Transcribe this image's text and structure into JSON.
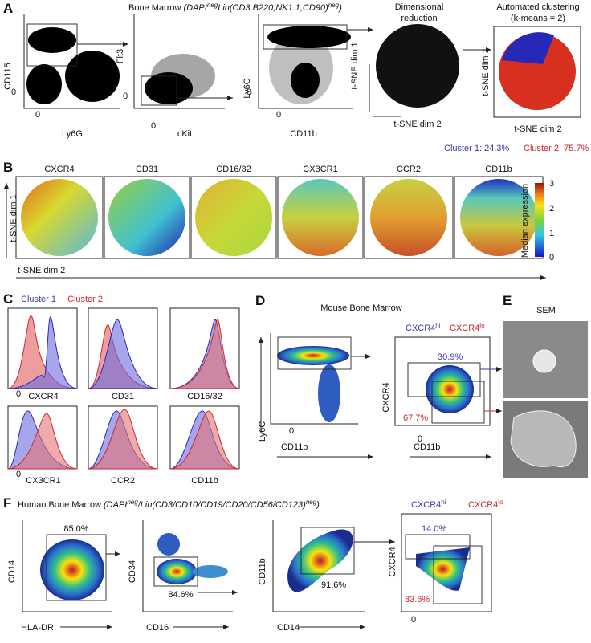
{
  "panel_a": {
    "label": "A",
    "title": "Bone Marrow",
    "gate_prefix": "DAPI",
    "gate_sup1": "neg",
    "gate_mid": "Lin(CD3,B220,NK1.1,CD90)",
    "gate_sup2": "neg",
    "plots": [
      {
        "y_label": "CD115",
        "x_label": "Ly6G",
        "y_zero": "0",
        "x_zero": "0"
      },
      {
        "y_label": "Flt3",
        "x_label": "cKit",
        "y_zero": "0",
        "x_zero": "0"
      },
      {
        "y_label": "Ly6C",
        "x_label": "CD11b",
        "y_zero": "0",
        "x_zero": "0"
      }
    ],
    "dimred_title": [
      "Dimensional",
      "reduction"
    ],
    "dimred_y": "t-SNE dim 1",
    "dimred_x": "t-SNE dim 2",
    "cluster_title": [
      "Automated clustering",
      "(k-means = 2)"
    ],
    "cluster_y": "t-SNE dim 1",
    "cluster_x": "t-SNE dim 2",
    "cluster1": "Cluster 1: 24.3%",
    "cluster2": "Cluster 2: 75.7%"
  },
  "panel_b": {
    "label": "B",
    "markers": [
      "CXCR4",
      "CD31",
      "CD16/32",
      "CX3CR1",
      "CCR2",
      "CD11b"
    ],
    "y_label": "t-SNE dim 1",
    "x_label": "t-SNE dim 2",
    "colorbar_title": "Median expression",
    "colorbar_ticks": [
      3,
      2,
      1,
      0
    ]
  },
  "panel_c": {
    "label": "C",
    "legend": [
      "Cluster 1",
      "Cluster 2"
    ],
    "markers": [
      "CXCR4",
      "CD31",
      "CD16/32",
      "CX3CR1",
      "CCR2",
      "CD11b"
    ],
    "zero": "0"
  },
  "panel_d": {
    "label": "D",
    "title": "Mouse Bone Marrow",
    "plot1_y": "Ly6C",
    "plot1_x": "CD11b",
    "plot2_y": "CXCR4",
    "plot2_x": "CD11b",
    "hi_base": "CXCR4",
    "hi_sup": "hi",
    "lo_base": "CXCR4",
    "lo_sup": "lo",
    "hi_pct": "30.9%",
    "lo_pct": "67.7%",
    "zero": "0"
  },
  "panel_e": {
    "label": "E",
    "title": "SEM"
  },
  "panel_f": {
    "label": "F",
    "title": "Human Bone Marrow",
    "gate_prefix": "DAPI",
    "gate_sup1": "neg",
    "gate_mid": "/Lin(CD3/CD10/CD19/CD20/CD56/CD123)",
    "gate_sup2": "neg",
    "plots": [
      {
        "y_label": "CD14",
        "x_label": "HLA-DR",
        "pct": "85.0%"
      },
      {
        "y_label": "CD34",
        "x_label": "CD16",
        "pct": "84.6%"
      },
      {
        "y_label": "CD11b",
        "x_label": "CD14",
        "pct": "91.6%"
      }
    ],
    "plot4_y": "CXCR4",
    "hi_base": "CXCR4",
    "hi_sup": "hi",
    "lo_base": "CXCR4",
    "lo_sup": "lo",
    "hi_pct": "14.0%",
    "lo_pct": "83.6%",
    "zero": "0"
  }
}
